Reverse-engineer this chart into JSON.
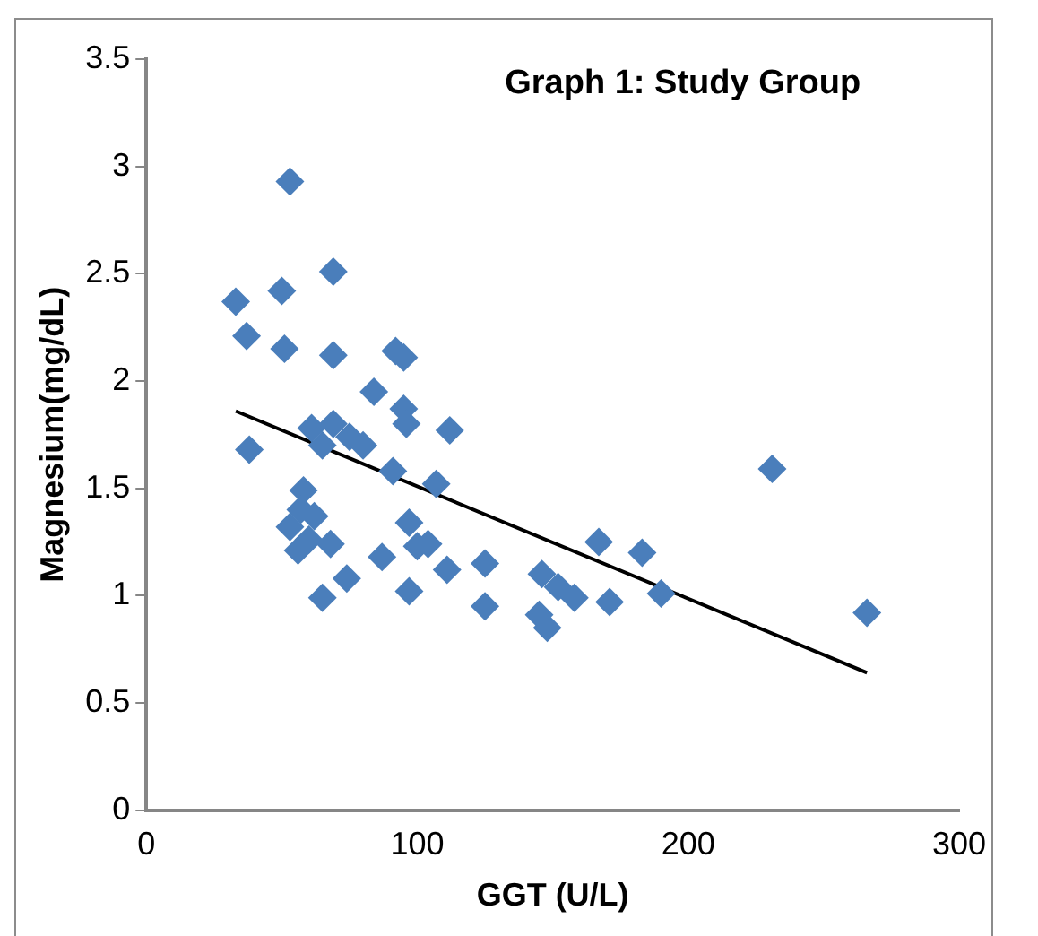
{
  "chart_data": {
    "type": "scatter",
    "title": "Graph 1: Study Group",
    "xlabel": "GGT (U/L)",
    "ylabel": "Magnesium(mg/dL)",
    "xlim": [
      0,
      300
    ],
    "xticks": [
      0,
      100,
      200,
      300
    ],
    "ylim": [
      0,
      3.5
    ],
    "yticks": [
      0,
      0.5,
      1,
      1.5,
      2,
      2.5,
      3,
      3.5
    ],
    "grid": false,
    "legend": false,
    "series": [
      {
        "marker": "diamond",
        "color": "#4a7ebb",
        "x": [
          53,
          69,
          33,
          50,
          37,
          51,
          69,
          92,
          95,
          84,
          95,
          96,
          112,
          61,
          69,
          75,
          80,
          65,
          91,
          107,
          38,
          58,
          57,
          62,
          53,
          60,
          97,
          104,
          68,
          56,
          87,
          100,
          111,
          125,
          74,
          65,
          97,
          125,
          167,
          183,
          190,
          171,
          158,
          152,
          146,
          145,
          148,
          266,
          231
        ],
        "values": [
          2.93,
          2.51,
          2.37,
          2.42,
          2.21,
          2.15,
          2.12,
          2.14,
          2.11,
          1.95,
          1.87,
          1.8,
          1.77,
          1.78,
          1.8,
          1.74,
          1.7,
          1.7,
          1.58,
          1.52,
          1.68,
          1.49,
          1.4,
          1.37,
          1.32,
          1.26,
          1.34,
          1.24,
          1.24,
          1.21,
          1.18,
          1.23,
          1.12,
          1.15,
          1.08,
          0.99,
          1.02,
          0.95,
          1.25,
          1.2,
          1.01,
          0.97,
          0.99,
          1.04,
          1.1,
          0.91,
          0.85,
          0.92,
          1.59
        ]
      },
      {
        "type": "line",
        "marker": "none",
        "color": "#000000",
        "x": [
          33,
          266
        ],
        "values": [
          1.86,
          0.64
        ]
      }
    ]
  }
}
